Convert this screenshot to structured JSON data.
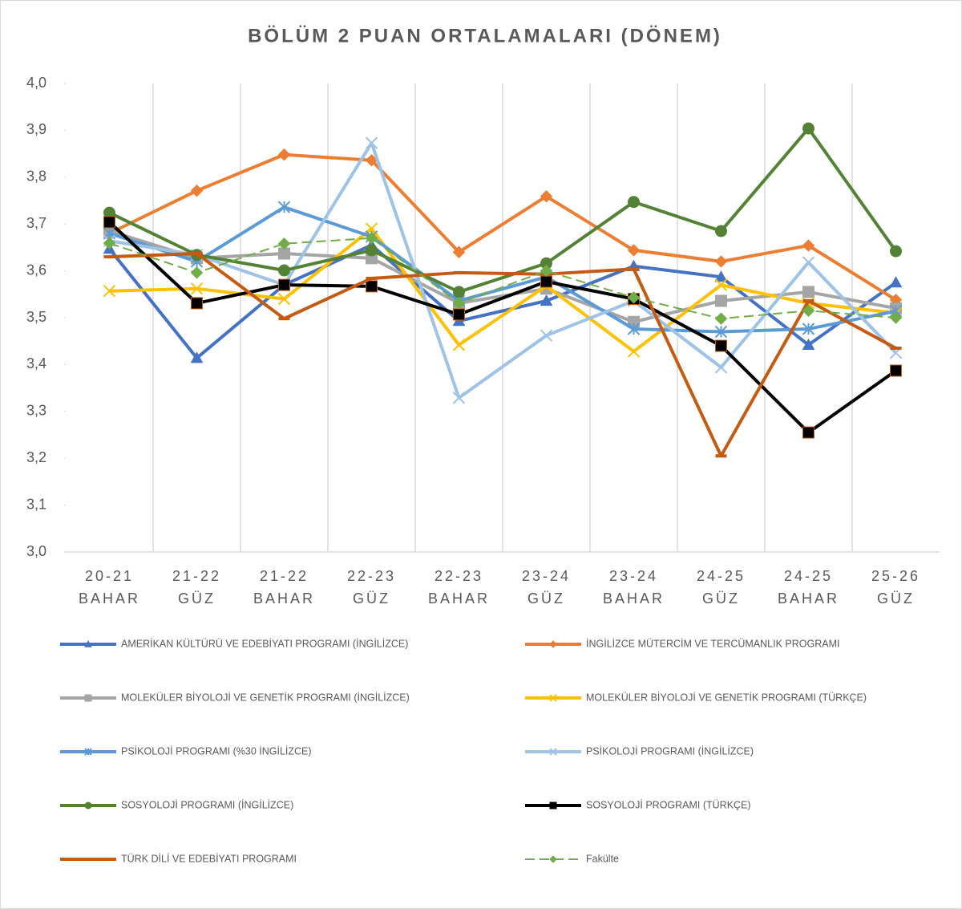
{
  "chart_data": {
    "type": "line",
    "title": "BÖLÜM 2 PUAN ORTALAMALARI (DÖNEM)",
    "categories": [
      "20-21 BAHAR",
      "21-22 GÜZ",
      "21-22 BAHAR",
      "22-23 GÜZ",
      "22-23 BAHAR",
      "23-24 GÜZ",
      "23-24 BAHAR",
      "24-25 GÜZ",
      "24-25 BAHAR",
      "25-26 GÜZ"
    ],
    "ylim": [
      3.0,
      4.0
    ],
    "yticks": [
      {
        "value": 3.0,
        "label": "3,0"
      },
      {
        "value": 3.1,
        "label": "3,1"
      },
      {
        "value": 3.2,
        "label": "3,2"
      },
      {
        "value": 3.3,
        "label": "3,3"
      },
      {
        "value": 3.4,
        "label": "3,4"
      },
      {
        "value": 3.5,
        "label": "3,5"
      },
      {
        "value": 3.6,
        "label": "3,6"
      },
      {
        "value": 3.7,
        "label": "3,7"
      },
      {
        "value": 3.8,
        "label": "3,8"
      },
      {
        "value": 3.9,
        "label": "3,9"
      },
      {
        "value": 4.0,
        "label": "4,0"
      }
    ],
    "legend": "bottom",
    "series": [
      {
        "name": "AMERİKAN KÜLTÜRÜ VE EDEBİYATI PROGRAMI (İNGİLİZCE)",
        "color": "#4472c4",
        "marker": "triangle",
        "values": [
          3.647,
          3.414,
          3.57,
          3.655,
          3.493,
          3.536,
          3.61,
          3.587,
          3.442,
          3.575
        ]
      },
      {
        "name": "İNGİLİZCE MÜTERCİM VE TERCÜMANLIK PROGRAMI",
        "color": "#ed7d31",
        "marker": "diamond",
        "values": [
          3.68,
          3.771,
          3.848,
          3.836,
          3.64,
          3.759,
          3.644,
          3.62,
          3.654,
          3.538
        ]
      },
      {
        "name": "MOLEKÜLER BİYOLOJİ VE GENETİK PROGRAMI (İNGİLİZCE)",
        "color": "#a5a5a5",
        "marker": "square",
        "values": [
          3.685,
          3.627,
          3.637,
          3.627,
          3.531,
          3.562,
          3.491,
          3.536,
          3.555,
          3.52
        ]
      },
      {
        "name": "MOLEKÜLER BİYOLOJİ VE GENETİK PROGRAMI (TÜRKÇE)",
        "color": "#ffc000",
        "marker": "x",
        "values": [
          3.557,
          3.562,
          3.54,
          3.69,
          3.442,
          3.568,
          3.428,
          3.57,
          3.531,
          3.51
        ]
      },
      {
        "name": "PSİKOLOJİ PROGRAMI (%30 İNGİLİZCE)",
        "color": "#5b9bd5",
        "marker": "star",
        "values": [
          3.68,
          3.62,
          3.736,
          3.673,
          3.536,
          3.587,
          3.476,
          3.47,
          3.476,
          3.514
        ]
      },
      {
        "name": "PSİKOLOJİ PROGRAMI (İNGİLİZCE)",
        "color": "#9dc3e6",
        "marker": "x",
        "values": [
          3.664,
          3.634,
          3.57,
          3.873,
          3.329,
          3.462,
          3.536,
          3.394,
          3.618,
          3.425
        ]
      },
      {
        "name": "SOSYOLOJİ PROGRAMI (İNGİLİZCE)",
        "color": "#548235",
        "marker": "circle",
        "values": [
          3.724,
          3.634,
          3.601,
          3.644,
          3.555,
          3.616,
          3.747,
          3.685,
          3.904,
          3.642
        ]
      },
      {
        "name": "SOSYOLOJİ PROGRAMI (TÜRKÇE)",
        "color": "#000000",
        "marker": "square",
        "values": [
          3.704,
          3.531,
          3.57,
          3.567,
          3.507,
          3.577,
          3.54,
          3.44,
          3.255,
          3.387
        ]
      },
      {
        "name": "TÜRK DİLİ VE EDEBİYATI PROGRAMI",
        "color": "#c55a11",
        "marker": "dash",
        "values": [
          3.63,
          3.637,
          3.498,
          3.584,
          3.596,
          3.593,
          3.604,
          3.205,
          3.536,
          3.435
        ]
      },
      {
        "name": "Fakülte",
        "color": "#70ad47",
        "marker": "diamond",
        "dashed": true,
        "values": [
          3.659,
          3.596,
          3.658,
          3.67,
          3.531,
          3.6,
          3.543,
          3.498,
          3.515,
          3.5
        ]
      }
    ]
  }
}
